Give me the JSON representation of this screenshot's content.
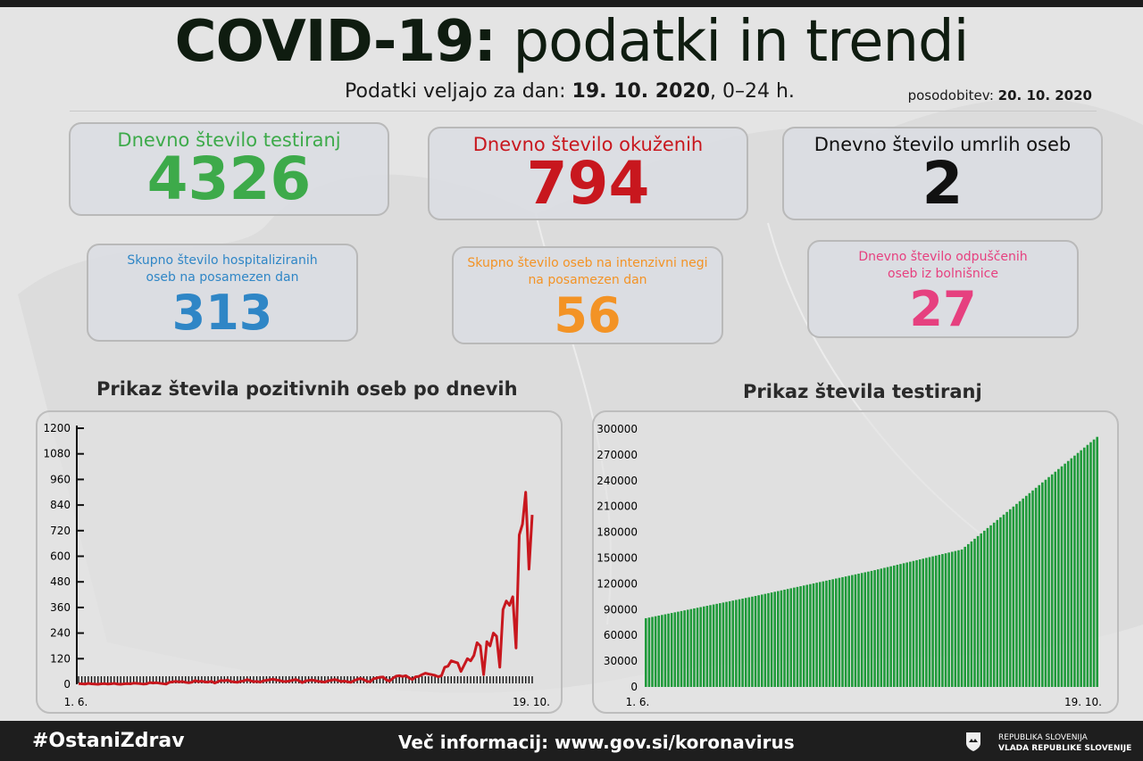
{
  "header": {
    "title_bold": "COVID-19:",
    "title_rest": " podatki in trendi",
    "subtitle_prefix": "Podatki veljajo za dan: ",
    "subtitle_date": "19. 10. 2020",
    "subtitle_suffix": ", 0–24 h.",
    "update_prefix": "posodobitev: ",
    "update_date": "20. 10. 2020"
  },
  "cards": [
    {
      "label": "Dnevno število testiranj",
      "value": "4326",
      "color": "#3daa4a"
    },
    {
      "label": "Dnevno število okuženih",
      "value": "794",
      "color": "#c8171e"
    },
    {
      "label": "Dnevno število umrlih oseb",
      "value": "2",
      "color": "#111111"
    },
    {
      "label": "Skupno število hospitaliziranih oseb na posamezen dan",
      "value": "313",
      "color": "#2f86c6"
    },
    {
      "label": "Skupno število oseb na intenzivni negi na posamezen dan",
      "value": "56",
      "color": "#f39325"
    },
    {
      "label": "Dnevno število odpuščenih oseb iz bolnišnice",
      "value": "27",
      "color": "#e6407f"
    }
  ],
  "footer": {
    "hashtag": "#OstaniZdrav",
    "info": "Več informacij: www.gov.si/koronavirus",
    "gov_line1": "REPUBLIKA SLOVENIJA",
    "gov_line2": "VLADA REPUBLIKE SLOVENIJE"
  },
  "chart_data": [
    {
      "type": "line",
      "title": "Prikaz števila pozitivnih oseb po dnevih",
      "x_start_label": "1. 6.",
      "x_end_label": "19. 10.",
      "ylim": [
        0,
        1200
      ],
      "yticks": [
        0,
        120,
        240,
        360,
        480,
        600,
        720,
        840,
        960,
        1080,
        1200
      ],
      "color": "#c8171e",
      "values": [
        3,
        2,
        1,
        4,
        2,
        1,
        0,
        2,
        3,
        1,
        2,
        4,
        1,
        0,
        2,
        3,
        2,
        5,
        4,
        3,
        1,
        2,
        8,
        6,
        7,
        5,
        3,
        1,
        9,
        11,
        14,
        11,
        13,
        9,
        7,
        10,
        17,
        12,
        15,
        11,
        10,
        14,
        6,
        12,
        18,
        16,
        20,
        13,
        11,
        9,
        14,
        16,
        22,
        17,
        12,
        14,
        10,
        16,
        19,
        21,
        24,
        20,
        18,
        14,
        13,
        15,
        19,
        22,
        17,
        8,
        15,
        18,
        20,
        17,
        14,
        12,
        10,
        16,
        19,
        22,
        19,
        13,
        15,
        12,
        9,
        17,
        23,
        27,
        22,
        14,
        12,
        26,
        29,
        33,
        34,
        20,
        15,
        28,
        38,
        40,
        37,
        40,
        30,
        22,
        35,
        37,
        45,
        52,
        48,
        45,
        42,
        35,
        40,
        80,
        85,
        110,
        105,
        100,
        60,
        90,
        120,
        110,
        135,
        195,
        180,
        45,
        200,
        180,
        240,
        225,
        80,
        350,
        390,
        370,
        410,
        170,
        700,
        750,
        900,
        540,
        794
      ]
    },
    {
      "type": "bar",
      "title": "Prikaz števila testiranj",
      "x_start_label": "1. 6.",
      "x_end_label": "19. 10.",
      "ylim": [
        0,
        300000
      ],
      "yticks": [
        0,
        30000,
        60000,
        90000,
        120000,
        150000,
        180000,
        210000,
        240000,
        270000,
        300000
      ],
      "color": "#1f9a3a",
      "values": [
        80000,
        80760,
        81520,
        82280,
        83040,
        83800,
        84560,
        85320,
        86080,
        86840,
        87600,
        88360,
        89120,
        89880,
        90640,
        91400,
        92160,
        92920,
        93680,
        94440,
        95200,
        95960,
        96720,
        97480,
        98240,
        99000,
        99760,
        100520,
        101280,
        102040,
        102800,
        103560,
        104320,
        105080,
        105890,
        106700,
        107510,
        108320,
        109130,
        109940,
        110750,
        111560,
        112370,
        113180,
        113990,
        114800,
        115610,
        116420,
        117230,
        118040,
        118850,
        119660,
        120470,
        121280,
        122090,
        122900,
        123710,
        124520,
        125330,
        126140,
        126950,
        127760,
        128570,
        129380,
        130190,
        131000,
        131810,
        132620,
        133430,
        134240,
        135050,
        135940,
        136830,
        137720,
        138610,
        139500,
        140390,
        141280,
        142170,
        143060,
        143950,
        144840,
        145730,
        146620,
        147510,
        148400,
        149290,
        150180,
        151070,
        151960,
        152850,
        153740,
        154630,
        155520,
        156410,
        157300,
        158190,
        159080,
        159970,
        163090,
        166210,
        169330,
        172450,
        175570,
        178690,
        181810,
        184930,
        188050,
        191170,
        194290,
        197410,
        200530,
        203650,
        206770,
        209890,
        213010,
        216130,
        219250,
        222370,
        225490,
        228610,
        231730,
        234850,
        237970,
        241090,
        244210,
        247330,
        250450,
        253570,
        256690,
        259810,
        262930,
        266050,
        269170,
        272290,
        275410,
        278530,
        281650,
        284770,
        287890,
        291000
      ]
    }
  ]
}
